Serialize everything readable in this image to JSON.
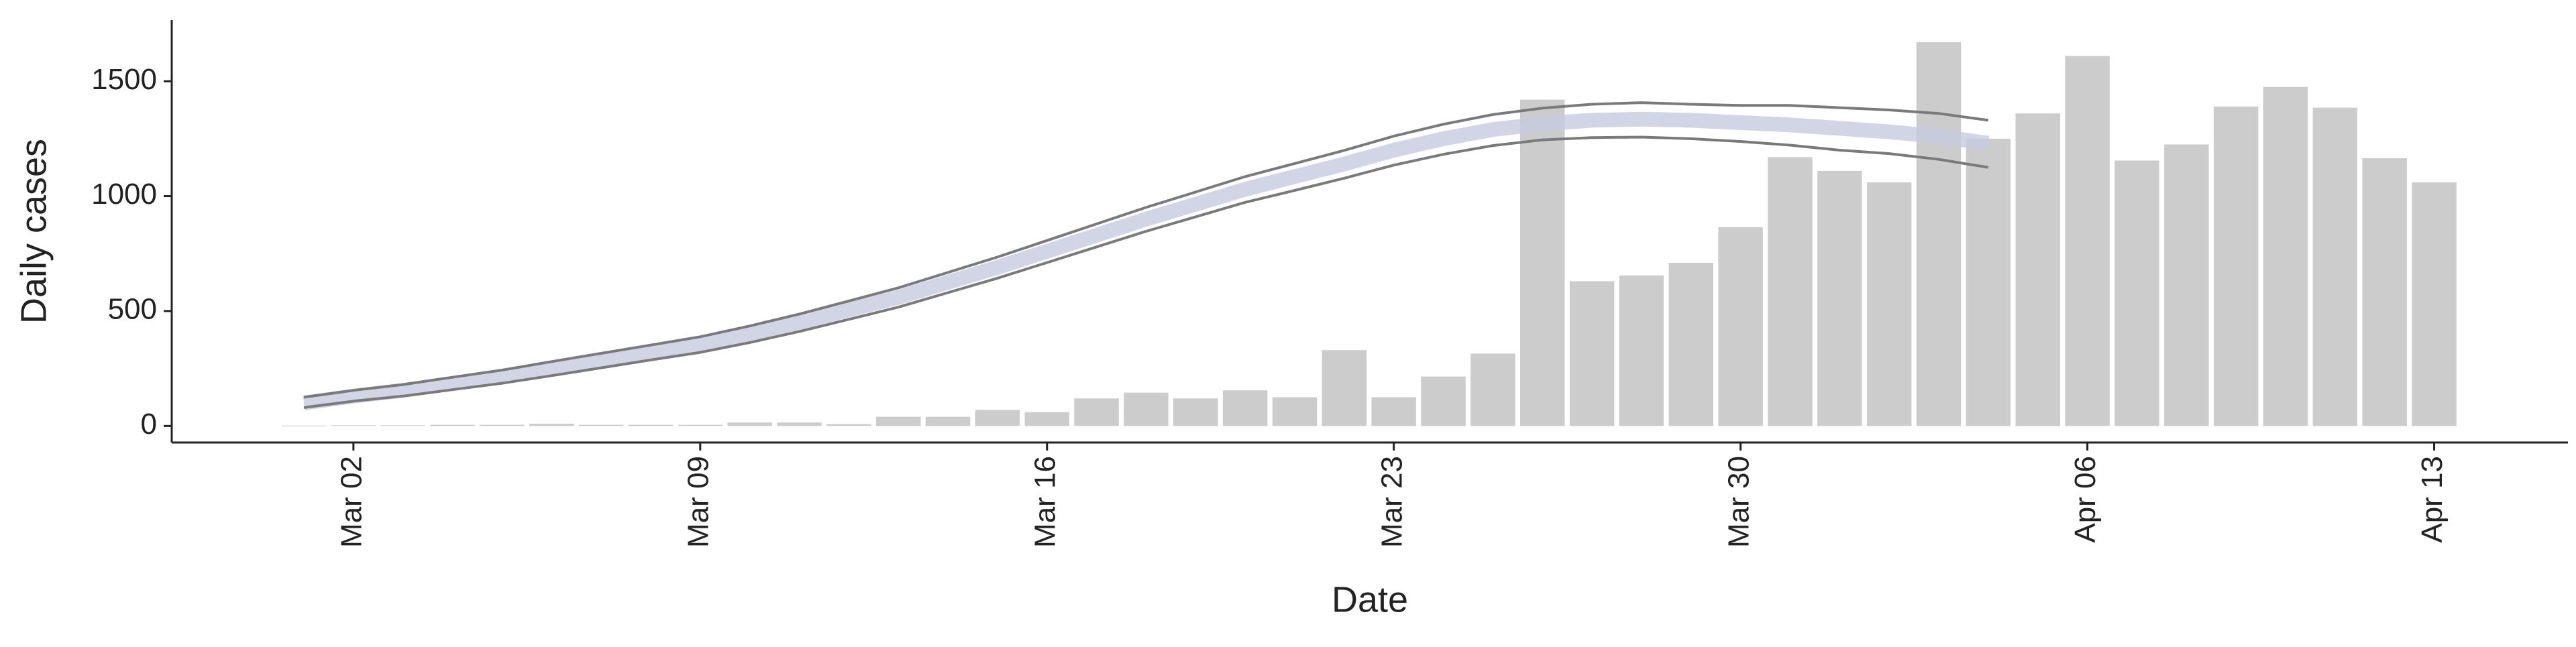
{
  "chart_data": {
    "type": "bar",
    "x_label": "Date",
    "y_label": "Daily cases",
    "categories": [
      null,
      "Mar 02",
      null,
      null,
      null,
      null,
      null,
      null,
      "Mar 09",
      null,
      null,
      null,
      null,
      null,
      null,
      "Mar 16",
      null,
      null,
      null,
      null,
      null,
      null,
      "Mar 23",
      null,
      null,
      null,
      null,
      null,
      null,
      "Mar 30",
      null,
      null,
      null,
      null,
      null,
      null,
      "Apr 06",
      null,
      null,
      null,
      null,
      null,
      null,
      "Apr 13"
    ],
    "values": [
      2,
      3,
      3,
      5,
      5,
      10,
      5,
      5,
      5,
      15,
      15,
      8,
      40,
      40,
      70,
      60,
      120,
      145,
      120,
      155,
      125,
      330,
      125,
      215,
      315,
      1420,
      630,
      655,
      710,
      865,
      1170,
      1110,
      1060,
      1670,
      1250,
      1360,
      1610,
      1155,
      1225,
      1390,
      1475,
      1385,
      1165,
      1060
    ],
    "color": "#cccccc",
    "band_color": "#c5cbe0",
    "line_color": "#7a7a7a",
    "lines": [
      {
        "values": [
          125,
          155,
          180,
          212,
          243,
          280,
          316,
          352,
          388,
          435,
          487,
          544,
          601,
          668,
          735,
          807,
          879,
          951,
          1018,
          1085,
          1142,
          1199,
          1261,
          1313,
          1355,
          1383,
          1400,
          1407,
          1400,
          1395,
          1395,
          1385,
          1375,
          1360,
          1330,
          null,
          null,
          null,
          null,
          null,
          null,
          null,
          null,
          null
        ]
      },
      {
        "values": [
          80,
          108,
          130,
          158,
          186,
          219,
          253,
          287,
          320,
          363,
          411,
          464,
          517,
          580,
          643,
          711,
          779,
          847,
          910,
          973,
          1025,
          1078,
          1135,
          1182,
          1220,
          1245,
          1255,
          1257,
          1250,
          1238,
          1222,
          1200,
          1185,
          1160,
          1125,
          null,
          null,
          null,
          null,
          null,
          null,
          null,
          null,
          null
        ]
      }
    ],
    "band": {
      "values": [
        100,
        130,
        155,
        185,
        215,
        250,
        285,
        320,
        355,
        400,
        450,
        505,
        560,
        625,
        690,
        760,
        830,
        900,
        965,
        1030,
        1085,
        1140,
        1200,
        1250,
        1290,
        1315,
        1330,
        1335,
        1330,
        1320,
        1310,
        1295,
        1280,
        1260,
        1230,
        null,
        null,
        null,
        null,
        null,
        null,
        null,
        null,
        null
      ]
    },
    "ylim": [
      -72,
      1766
    ],
    "yticks": [
      0,
      500,
      1000,
      1500
    ]
  }
}
